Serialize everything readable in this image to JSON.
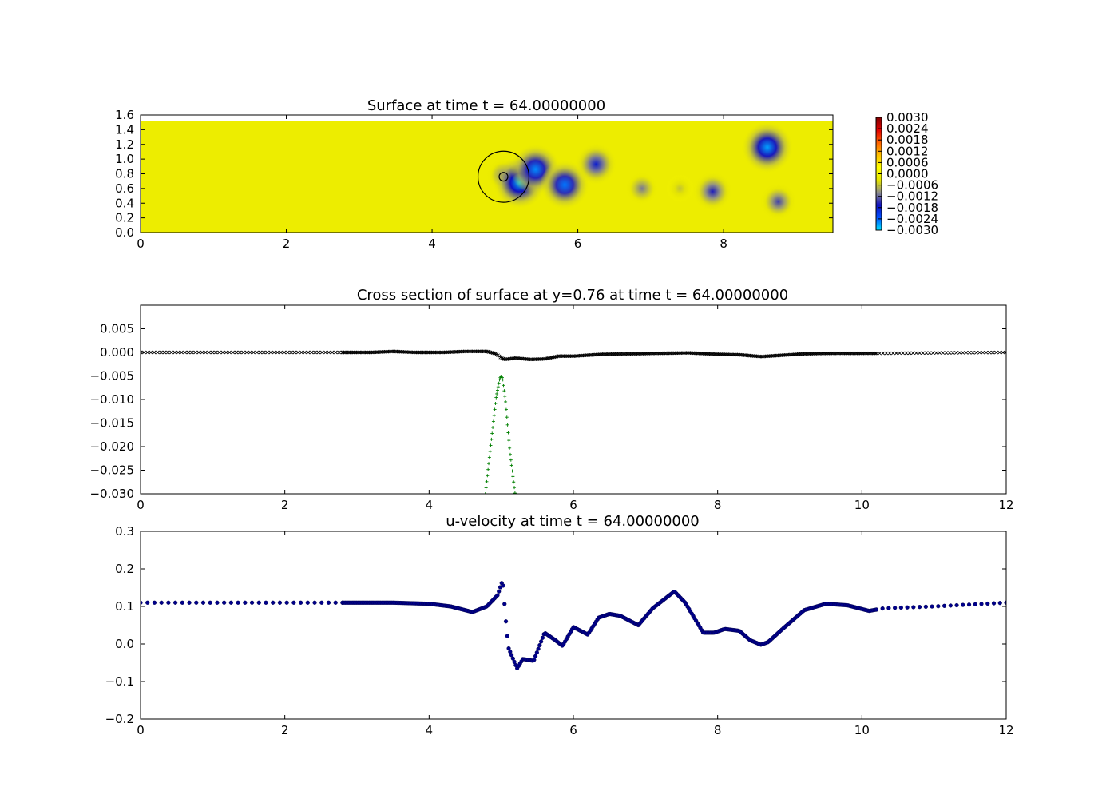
{
  "chart_data": [
    {
      "type": "heatmap",
      "title": "Surface at time t =    64.00000000",
      "xlim": [
        0,
        9.5
      ],
      "ylim": [
        0,
        1.6
      ],
      "xticks": [
        "0",
        "2",
        "4",
        "6",
        "8"
      ],
      "yticks": [
        "0.0",
        "0.2",
        "0.4",
        "0.6",
        "0.8",
        "1.0",
        "1.2",
        "1.4",
        "1.6"
      ],
      "colorbar": {
        "ticks": [
          "0.0030",
          "0.0024",
          "0.0018",
          "0.0012",
          "0.0006",
          "0.0000",
          "−0.0006",
          "−0.0012",
          "−0.0018",
          "−0.0024",
          "−0.0030"
        ],
        "range": [
          -0.003,
          0.003
        ],
        "colors": [
          "#00e5ff",
          "#0050ff",
          "#1010c0",
          "#8c8c8c",
          "#e6e600",
          "#ffff00",
          "#ffc000",
          "#ff6000",
          "#e00000",
          "#800000"
        ]
      },
      "domain_top_y": 1.52,
      "depressions": [
        {
          "x": 4.98,
          "y": 0.78,
          "value": -0.0012
        },
        {
          "x": 5.2,
          "y": 0.68,
          "value": -0.0028
        },
        {
          "x": 5.42,
          "y": 0.86,
          "value": -0.0026
        },
        {
          "x": 5.82,
          "y": 0.65,
          "value": -0.0025
        },
        {
          "x": 6.25,
          "y": 0.93,
          "value": -0.0018
        },
        {
          "x": 6.88,
          "y": 0.6,
          "value": -0.0011
        },
        {
          "x": 7.4,
          "y": 0.6,
          "value": -0.0006
        },
        {
          "x": 7.85,
          "y": 0.56,
          "value": -0.0016
        },
        {
          "x": 8.6,
          "y": 1.16,
          "value": -0.0027
        },
        {
          "x": 8.75,
          "y": 0.42,
          "value": -0.0014
        }
      ],
      "body_circle": {
        "x": 4.98,
        "y": 0.76,
        "r_outer": 0.35,
        "r_inner": 0.06
      }
    },
    {
      "type": "scatter",
      "title": "Cross section of surface at y=0.76 at time t =    64.00000000",
      "xlim": [
        0,
        12
      ],
      "ylim": [
        -0.03,
        0.01
      ],
      "xticks": [
        "0",
        "2",
        "4",
        "6",
        "8",
        "10",
        "12"
      ],
      "yticks": [
        "0.005",
        "0.000",
        "−0.005",
        "−0.010",
        "−0.015",
        "−0.020",
        "−0.025",
        "−0.030"
      ],
      "series": [
        {
          "marker": "x",
          "color": "#000000",
          "x": [
            0,
            2.8,
            3.2,
            3.5,
            3.8,
            4.2,
            4.5,
            4.8,
            4.93,
            5.0,
            5.05,
            5.2,
            5.4,
            5.6,
            5.8,
            6.0,
            6.4,
            6.8,
            7.2,
            7.6,
            8.0,
            8.3,
            8.6,
            8.9,
            9.2,
            9.6,
            10.2,
            12
          ],
          "y": [
            0.0,
            0.0,
            0.0,
            0.0002,
            0.0,
            0.0,
            0.0002,
            0.0002,
            -0.0003,
            -0.0012,
            -0.0015,
            -0.0012,
            -0.0015,
            -0.0014,
            -0.0008,
            -0.0008,
            -0.0004,
            -0.0003,
            -0.0002,
            -0.0001,
            -0.0004,
            -0.0005,
            -0.0009,
            -0.0006,
            -0.0003,
            -0.0002,
            -0.0002,
            0.0
          ]
        },
        {
          "marker": "+",
          "color": "#008000",
          "x": [
            4.78,
            4.86,
            4.93,
            4.98,
            5.0,
            5.02,
            5.06,
            5.12,
            5.2
          ],
          "y": [
            -0.03,
            -0.019,
            -0.0095,
            -0.0055,
            -0.005,
            -0.0055,
            -0.0105,
            -0.021,
            -0.031
          ]
        }
      ]
    },
    {
      "type": "scatter",
      "title": "u-velocity at time t =    64.00000000",
      "xlim": [
        0,
        12
      ],
      "ylim": [
        -0.2,
        0.3
      ],
      "xticks": [
        "0",
        "2",
        "4",
        "6",
        "8",
        "10",
        "12"
      ],
      "yticks": [
        "0.3",
        "0.2",
        "0.1",
        "0.0",
        "−0.1",
        "−0.2"
      ],
      "series": [
        {
          "marker": "o",
          "color": "#00008b",
          "x": [
            0,
            2.8,
            3.5,
            4.0,
            4.3,
            4.6,
            4.8,
            4.95,
            5.02,
            5.06,
            5.1,
            5.22,
            5.3,
            5.45,
            5.6,
            5.75,
            5.85,
            6.0,
            6.2,
            6.35,
            6.5,
            6.65,
            6.9,
            7.1,
            7.4,
            7.55,
            7.8,
            7.95,
            8.1,
            8.3,
            8.45,
            8.6,
            8.7,
            8.9,
            9.2,
            9.5,
            9.8,
            10.1,
            10.3,
            11.0,
            12.0
          ],
          "y": [
            0.11,
            0.11,
            0.11,
            0.107,
            0.1,
            0.085,
            0.1,
            0.13,
            0.17,
            0.07,
            -0.01,
            -0.065,
            -0.04,
            -0.045,
            0.03,
            0.01,
            -0.005,
            0.045,
            0.025,
            0.07,
            0.08,
            0.075,
            0.05,
            0.095,
            0.14,
            0.11,
            0.03,
            0.03,
            0.04,
            0.035,
            0.01,
            -0.002,
            0.005,
            0.04,
            0.09,
            0.107,
            0.103,
            0.088,
            0.095,
            0.1,
            0.11
          ]
        }
      ]
    }
  ]
}
